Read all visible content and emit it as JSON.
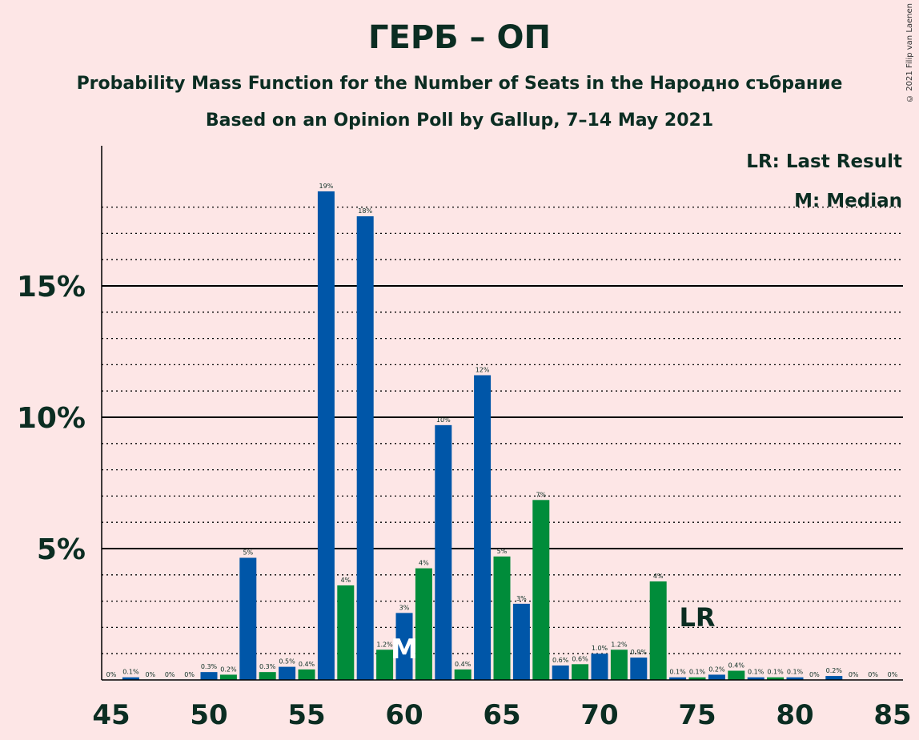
{
  "title": "ГЕРБ – ОП",
  "subtitle": "Probability Mass Function for the Number of Seats in the Народно събрание",
  "source": "Based on an Opinion Poll by Gallup, 7–14 May 2021",
  "copyright": "© 2021 Filip van Laenen",
  "legend": {
    "last_result": "LR: Last Result",
    "median": "M: Median"
  },
  "colors": {
    "blue": "#0056a8",
    "green": "#008c3a",
    "background": "#fde6e6",
    "text": "#0b2d22"
  },
  "chart_data": {
    "type": "bar",
    "ylim": [
      0,
      19.5
    ],
    "yticks": [
      {
        "value": 5,
        "label": "5%"
      },
      {
        "value": 10,
        "label": "10%"
      },
      {
        "value": 15,
        "label": "15%"
      }
    ],
    "xticks": [
      45,
      50,
      55,
      60,
      65,
      70,
      75,
      80,
      85
    ],
    "xlim": [
      45,
      85
    ],
    "bars": [
      {
        "seats": 45,
        "value": 0,
        "label": "0%"
      },
      {
        "seats": 46,
        "value": 0.1,
        "label": "0.1%"
      },
      {
        "seats": 47,
        "value": 0,
        "label": "0%"
      },
      {
        "seats": 48,
        "value": 0,
        "label": "0%"
      },
      {
        "seats": 49,
        "value": 0,
        "label": "0%"
      },
      {
        "seats": 50,
        "value": 0.3,
        "label": "0.3%"
      },
      {
        "seats": 51,
        "value": 0.2,
        "label": "0.2%"
      },
      {
        "seats": 52,
        "value": 4.65,
        "label": "5%"
      },
      {
        "seats": 53,
        "value": 0.3,
        "label": "0.3%"
      },
      {
        "seats": 54,
        "value": 0.5,
        "label": "0.5%"
      },
      {
        "seats": 55,
        "value": 0.4,
        "label": "0.4%"
      },
      {
        "seats": 56,
        "value": 18.6,
        "label": "19%"
      },
      {
        "seats": 57,
        "value": 3.6,
        "label": "4%"
      },
      {
        "seats": 58,
        "value": 17.65,
        "label": "18%"
      },
      {
        "seats": 59,
        "value": 1.15,
        "label": "1.2%"
      },
      {
        "seats": 60,
        "value": 2.55,
        "label": "3%"
      },
      {
        "seats": 61,
        "value": 4.25,
        "label": "4%"
      },
      {
        "seats": 62,
        "value": 9.7,
        "label": "10%"
      },
      {
        "seats": 63,
        "value": 0.4,
        "label": "0.4%"
      },
      {
        "seats": 64,
        "value": 11.6,
        "label": "12%"
      },
      {
        "seats": 65,
        "value": 4.7,
        "label": "5%"
      },
      {
        "seats": 66,
        "value": 2.9,
        "label": "3%"
      },
      {
        "seats": 67,
        "value": 6.85,
        "label": "7%"
      },
      {
        "seats": 68,
        "value": 0.55,
        "label": "0.6%"
      },
      {
        "seats": 69,
        "value": 0.6,
        "label": "0.6%"
      },
      {
        "seats": 70,
        "value": 1.0,
        "label": "1.0%"
      },
      {
        "seats": 71,
        "value": 1.15,
        "label": "1.2%"
      },
      {
        "seats": 72,
        "value": 0.85,
        "label": "0.9%"
      },
      {
        "seats": 73,
        "value": 3.75,
        "label": "4%"
      },
      {
        "seats": 74,
        "value": 0.1,
        "label": "0.1%"
      },
      {
        "seats": 75,
        "value": 0.1,
        "label": "0.1%"
      },
      {
        "seats": 76,
        "value": 0.2,
        "label": "0.2%"
      },
      {
        "seats": 77,
        "value": 0.35,
        "label": "0.4%"
      },
      {
        "seats": 78,
        "value": 0.1,
        "label": "0.1%"
      },
      {
        "seats": 79,
        "value": 0.1,
        "label": "0.1%"
      },
      {
        "seats": 80,
        "value": 0.1,
        "label": "0.1%"
      },
      {
        "seats": 81,
        "value": 0,
        "label": "0%"
      },
      {
        "seats": 82,
        "value": 0.15,
        "label": "0.2%"
      },
      {
        "seats": 83,
        "value": 0,
        "label": "0%"
      },
      {
        "seats": 84,
        "value": 0,
        "label": "0%"
      },
      {
        "seats": 85,
        "value": 0,
        "label": "0%"
      }
    ],
    "median": {
      "seats": 60,
      "label": "M"
    },
    "last_result": {
      "seats": 75,
      "label": "LR"
    }
  }
}
